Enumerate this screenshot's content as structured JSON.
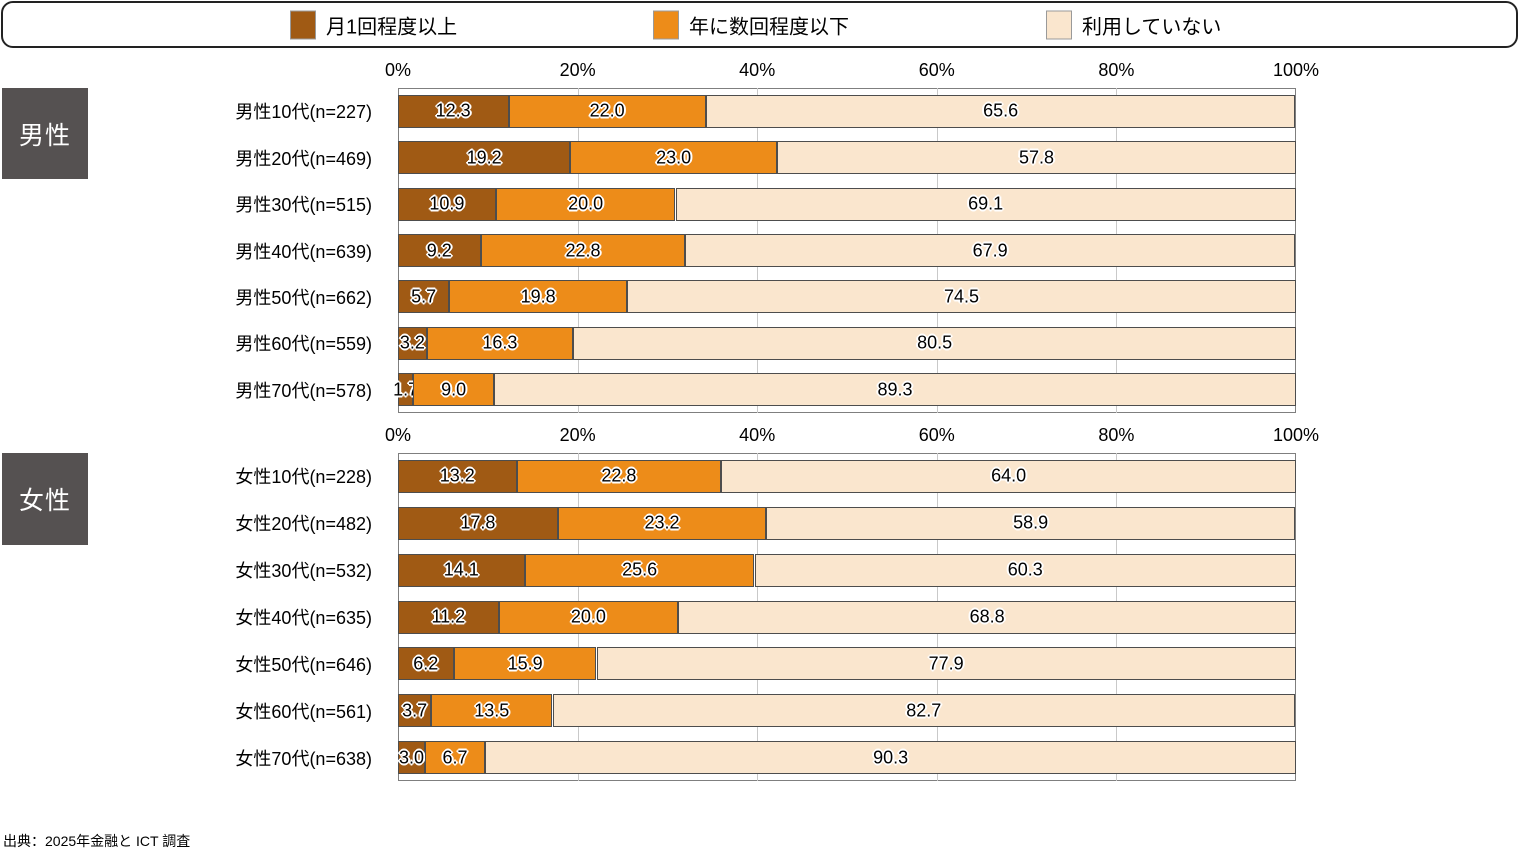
{
  "legend": {
    "border_color": "#222222",
    "items": [
      {
        "label": "月1回程度以上",
        "color": "#A05A14"
      },
      {
        "label": "年に数回程度以下",
        "color": "#ED8C19"
      },
      {
        "label": "利用していない",
        "color": "#FAE6CE"
      }
    ]
  },
  "source_note": "出典：2025年金融と ICT 調査",
  "colors": {
    "series": [
      "#A05A14",
      "#ED8C19",
      "#FAE6CE"
    ],
    "segment_border": "#4D4D4D",
    "plot_border": "#7F7F7F",
    "gridline": "#C9C9C9",
    "gender_box_bg": "#555151",
    "gender_box_text": "#FFFFFF"
  },
  "chart_data": [
    {
      "type": "bar",
      "stacked": true,
      "orientation": "horizontal",
      "group_label": "男性",
      "series_names": [
        "月1回程度以上",
        "年に数回程度以下",
        "利用していない"
      ],
      "axis_ticks": [
        "0%",
        "20%",
        "40%",
        "60%",
        "80%",
        "100%"
      ],
      "xlim": [
        0,
        100
      ],
      "grid": true,
      "legend_position": "top",
      "categories": [
        "男性10代(n=227)",
        "男性20代(n=469)",
        "男性30代(n=515)",
        "男性40代(n=639)",
        "男性50代(n=662)",
        "男性60代(n=559)",
        "男性70代(n=578)"
      ],
      "rows": [
        [
          12.3,
          22.0,
          65.6
        ],
        [
          19.2,
          23.0,
          57.8
        ],
        [
          10.9,
          20.0,
          69.1
        ],
        [
          9.2,
          22.8,
          67.9
        ],
        [
          5.7,
          19.8,
          74.5
        ],
        [
          3.2,
          16.3,
          80.5
        ],
        [
          1.7,
          9.0,
          89.3
        ]
      ]
    },
    {
      "type": "bar",
      "stacked": true,
      "orientation": "horizontal",
      "group_label": "女性",
      "series_names": [
        "月1回程度以上",
        "年に数回程度以下",
        "利用していない"
      ],
      "axis_ticks": [
        "0%",
        "20%",
        "40%",
        "60%",
        "80%",
        "100%"
      ],
      "xlim": [
        0,
        100
      ],
      "grid": true,
      "legend_position": "top",
      "categories": [
        "女性10代(n=228)",
        "女性20代(n=482)",
        "女性30代(n=532)",
        "女性40代(n=635)",
        "女性50代(n=646)",
        "女性60代(n=561)",
        "女性70代(n=638)"
      ],
      "rows": [
        [
          13.2,
          22.8,
          64.0
        ],
        [
          17.8,
          23.2,
          58.9
        ],
        [
          14.1,
          25.6,
          60.3
        ],
        [
          11.2,
          20.0,
          68.8
        ],
        [
          6.2,
          15.9,
          77.9
        ],
        [
          3.7,
          13.5,
          82.7
        ],
        [
          3.0,
          6.7,
          90.3
        ]
      ]
    }
  ]
}
